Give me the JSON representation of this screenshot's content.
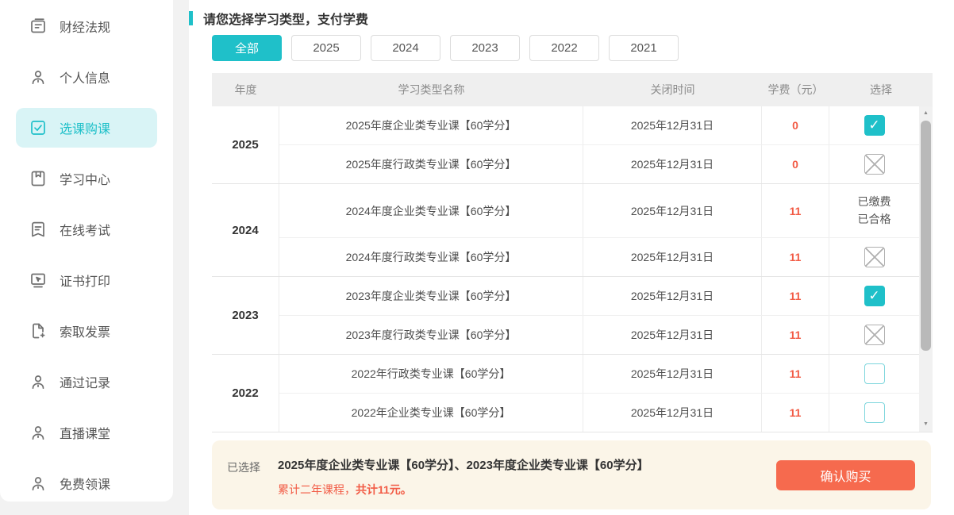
{
  "colors": {
    "accent_teal": "#1fc0c9",
    "accent_teal_light_bg": "#d9f4f6",
    "fee_red": "#f25b45",
    "button_orange": "#f66a4e",
    "summary_bg": "#fbf5e8",
    "table_header_bg": "#efefef"
  },
  "sidebar": {
    "items": [
      {
        "label": "财经法规",
        "icon": "ledger-icon",
        "active": false
      },
      {
        "label": "个人信息",
        "icon": "person-icon",
        "active": false
      },
      {
        "label": "选课购课",
        "icon": "checkbox-check-icon",
        "active": true
      },
      {
        "label": "学习中心",
        "icon": "book-bookmark-icon",
        "active": false
      },
      {
        "label": "在线考试",
        "icon": "exam-doc-icon",
        "active": false
      },
      {
        "label": "证书打印",
        "icon": "certificate-print-icon",
        "active": false
      },
      {
        "label": "索取发票",
        "icon": "invoice-plus-icon",
        "active": false
      },
      {
        "label": "通过记录",
        "icon": "person-icon",
        "active": false
      },
      {
        "label": "直播课堂",
        "icon": "person-icon",
        "active": false
      },
      {
        "label": "免费领课",
        "icon": "person-icon",
        "active": false
      }
    ]
  },
  "main": {
    "title": "请您选择学习类型，支付学费",
    "filters": [
      {
        "label": "全部",
        "active": true
      },
      {
        "label": "2025",
        "active": false
      },
      {
        "label": "2024",
        "active": false
      },
      {
        "label": "2023",
        "active": false
      },
      {
        "label": "2022",
        "active": false
      },
      {
        "label": "2021",
        "active": false
      }
    ],
    "table": {
      "headers": [
        "年度",
        "学习类型名称",
        "关闭时间",
        "学费（元）",
        "选择"
      ],
      "groups": [
        {
          "year": "2025",
          "rows": [
            {
              "name": "2025年度企业类专业课【60学分】",
              "close": "2025年12月31日",
              "fee": "0",
              "select": "checked"
            },
            {
              "name": "2025年度行政类专业课【60学分】",
              "close": "2025年12月31日",
              "fee": "0",
              "select": "disabled"
            }
          ]
        },
        {
          "year": "2024",
          "rows": [
            {
              "name": "2024年度企业类专业课【60学分】",
              "close": "2025年12月31日",
              "fee": "11",
              "select": "paid",
              "status_lines": [
                "已缴费",
                "已合格"
              ]
            },
            {
              "name": "2024年度行政类专业课【60学分】",
              "close": "2025年12月31日",
              "fee": "11",
              "select": "disabled"
            }
          ]
        },
        {
          "year": "2023",
          "rows": [
            {
              "name": "2023年度企业类专业课【60学分】",
              "close": "2025年12月31日",
              "fee": "11",
              "select": "checked"
            },
            {
              "name": "2023年度行政类专业课【60学分】",
              "close": "2025年12月31日",
              "fee": "11",
              "select": "disabled"
            }
          ]
        },
        {
          "year": "2022",
          "rows": [
            {
              "name": "2022年行政类专业课【60学分】",
              "close": "2025年12月31日",
              "fee": "11",
              "select": "unchecked"
            },
            {
              "name": "2022年企业类专业课【60学分】",
              "close": "2025年12月31日",
              "fee": "11",
              "select": "unchecked"
            }
          ]
        }
      ]
    },
    "summary": {
      "label": "已选择",
      "selected_courses": "2025年度企业类专业课【60学分】、2023年度企业类专业课【60学分】",
      "total_prefix": "累计二年课程，",
      "total_bold": "共计11元。",
      "confirm_label": "确认购买"
    }
  }
}
